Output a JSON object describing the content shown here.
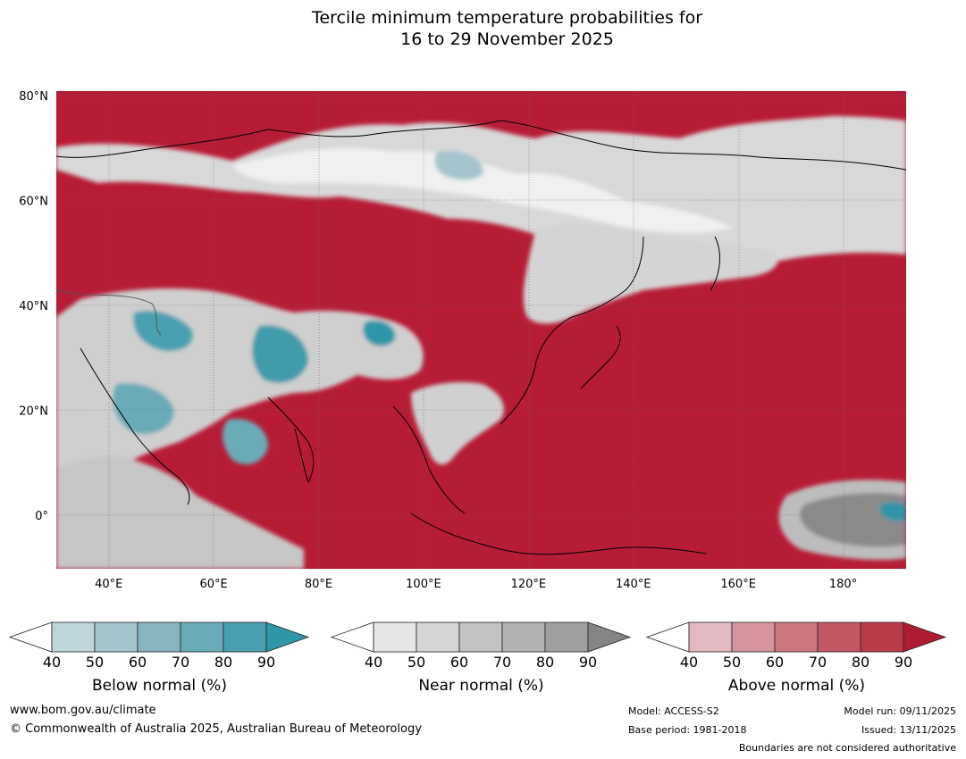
{
  "title": {
    "line1": "Tercile minimum temperature probabilities for",
    "line2": "16 to 29 November 2025"
  },
  "map": {
    "lon_range": [
      30,
      192
    ],
    "lat_range": [
      -10,
      81
    ],
    "lat_labels": [
      {
        "lat": 80,
        "label": "80°N"
      },
      {
        "lat": 60,
        "label": "60°N"
      },
      {
        "lat": 40,
        "label": "40°N"
      },
      {
        "lat": 20,
        "label": "20°N"
      },
      {
        "lat": 0,
        "label": "0°"
      }
    ],
    "lon_labels": [
      {
        "lon": 40,
        "label": "40°E"
      },
      {
        "lon": 60,
        "label": "60°E"
      },
      {
        "lon": 80,
        "label": "80°E"
      },
      {
        "lon": 100,
        "label": "100°E"
      },
      {
        "lon": 120,
        "label": "120°E"
      },
      {
        "lon": 140,
        "label": "140°E"
      },
      {
        "lon": 160,
        "label": "160°E"
      },
      {
        "lon": 180,
        "label": "180°"
      }
    ]
  },
  "legends": [
    {
      "title": "Below normal (%)",
      "ticks": [
        "40",
        "50",
        "60",
        "70",
        "80",
        "90"
      ],
      "colors": [
        "#bed5dc",
        "#a5c5cc",
        "#88b5c0",
        "#6aabb8",
        "#4aa0b1",
        "#2f96a8"
      ]
    },
    {
      "title": "Near normal (%)",
      "ticks": [
        "40",
        "50",
        "60",
        "70",
        "80",
        "90"
      ],
      "colors": [
        "#e6e6e6",
        "#d5d5d5",
        "#c3c3c3",
        "#b2b2b2",
        "#a0a0a0",
        "#858585"
      ]
    },
    {
      "title": "Above normal (%)",
      "ticks": [
        "40",
        "50",
        "60",
        "70",
        "80",
        "90"
      ],
      "colors": [
        "#e2b9be",
        "#d5959d",
        "#cc7680",
        "#c45764",
        "#b93a49",
        "#b01b34"
      ]
    }
  ],
  "footer": {
    "website": "www.bom.gov.au/climate",
    "copyright": "© Commonwealth of Australia 2025, Australian Bureau of Meteorology",
    "model": "Model: ACCESS-S2",
    "base_period": "Base period: 1981-2018",
    "model_run": "Model run: 09/11/2025",
    "issued": "Issued: 13/11/2025",
    "disclaimer": "Boundaries are not considered authoritative"
  }
}
